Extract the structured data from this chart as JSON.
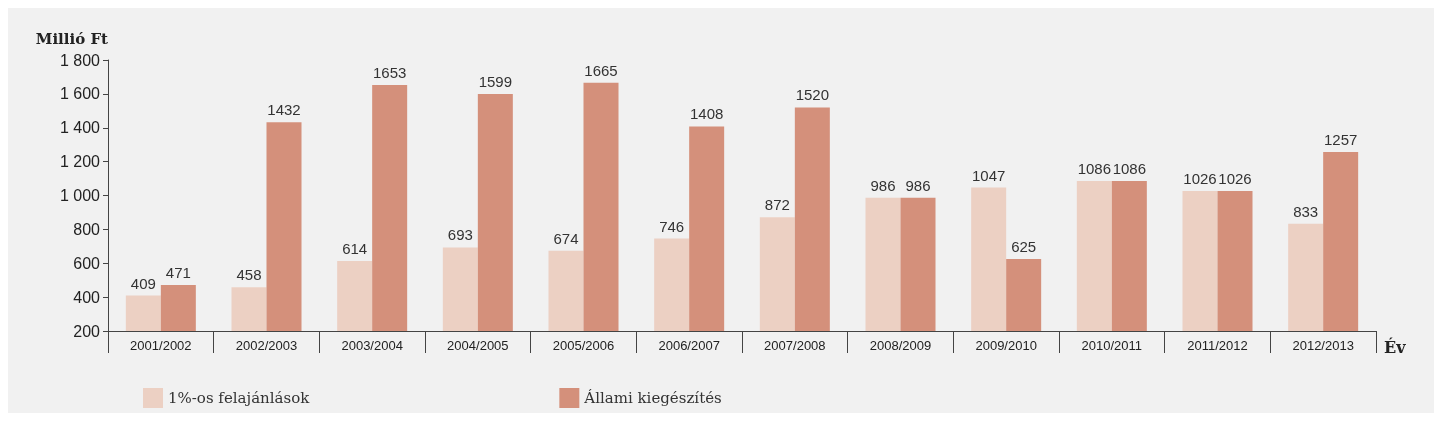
{
  "chart_data": {
    "type": "bar",
    "ylabel": "Millió Ft",
    "xlabel": "Év",
    "categories": [
      "2001/2002",
      "2002/2003",
      "2003/2004",
      "2004/2005",
      "2005/2006",
      "2006/2007",
      "2007/2008",
      "2008/2009",
      "2009/2010",
      "2010/2011",
      "2011/2012",
      "2012/2013"
    ],
    "series": [
      {
        "name": "1%-os felajánlások",
        "color": "#ecd0c3",
        "values": [
          409,
          458,
          614,
          693,
          674,
          746,
          872,
          986,
          1047,
          1086,
          1026,
          833
        ]
      },
      {
        "name": "Állami kiegészítés",
        "color": "#d4907b",
        "values": [
          471,
          1432,
          1653,
          1599,
          1665,
          1408,
          1520,
          986,
          625,
          1086,
          1026,
          1257
        ]
      }
    ],
    "ylim": [
      200,
      1800
    ],
    "yticks": [
      200,
      400,
      600,
      800,
      {
        "value": 1000,
        "label": "1 000"
      },
      {
        "value": 1200,
        "label": "1 200"
      },
      {
        "value": 1400,
        "label": "1 400"
      },
      {
        "value": 1600,
        "label": "1 600"
      },
      {
        "value": 1800,
        "label": "1 800"
      }
    ],
    "data_labels": true,
    "grid": false,
    "legend": "bottom"
  }
}
